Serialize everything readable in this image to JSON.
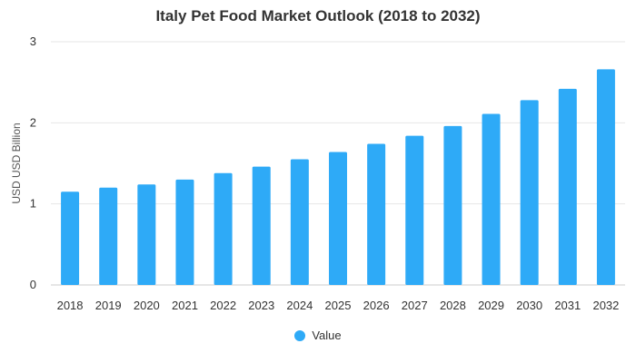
{
  "chart_data": {
    "type": "bar",
    "title": "Italy Pet Food Market Outlook (2018 to 2032)",
    "xlabel": "",
    "ylabel": "USD USD Billion",
    "categories": [
      "2018",
      "2019",
      "2020",
      "2021",
      "2022",
      "2023",
      "2024",
      "2025",
      "2026",
      "2027",
      "2028",
      "2029",
      "2030",
      "2031",
      "2032"
    ],
    "series": [
      {
        "name": "Value",
        "color": "#2eaaf7",
        "values": [
          1.15,
          1.2,
          1.24,
          1.3,
          1.38,
          1.46,
          1.55,
          1.64,
          1.74,
          1.84,
          1.96,
          2.11,
          2.28,
          2.42,
          2.66
        ]
      }
    ],
    "ylim": [
      0,
      3
    ],
    "yticks": [
      "0",
      "1",
      "2",
      "3"
    ],
    "grid": true,
    "legend_position": "bottom"
  }
}
